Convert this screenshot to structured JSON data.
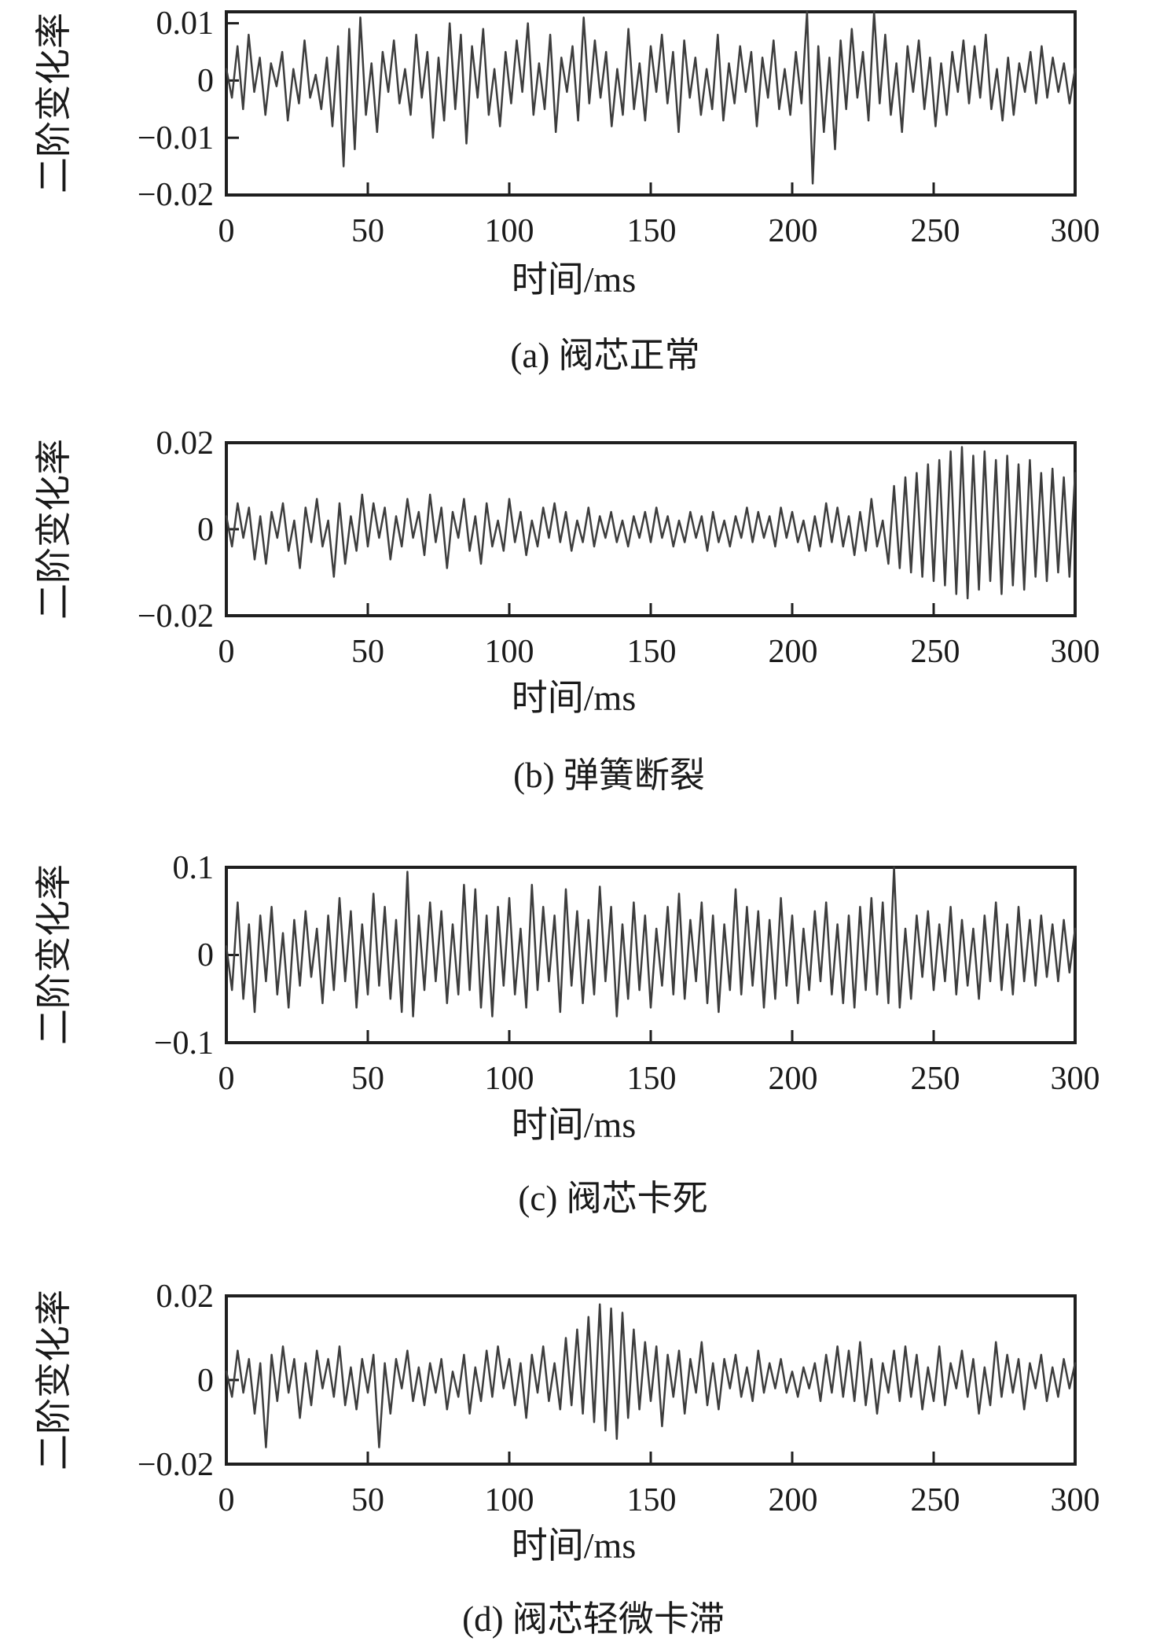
{
  "colors": {
    "axis": "#1f1f1f",
    "line": "#3d3d3d",
    "text": "#1a1a1a",
    "background": "#ffffff"
  },
  "chart_data": [
    {
      "id": "a",
      "type": "line",
      "caption": "(a) 阀芯正常",
      "xlabel": "时间/ms",
      "ylabel": "二阶变化率",
      "xlim": [
        0,
        300
      ],
      "ylim": [
        -0.02,
        0.012
      ],
      "xticks": [
        0,
        50,
        100,
        150,
        200,
        250,
        300
      ],
      "yticks": [
        0.01,
        0,
        -0.01,
        -0.02
      ],
      "ytick_labels": [
        "0.01",
        "0",
        "−0.01",
        "−0.02"
      ],
      "grid": false,
      "legend": null,
      "unit": 0.001,
      "values": [
        2,
        -3,
        6,
        -5,
        8,
        -2,
        4,
        -6,
        3,
        -1,
        5,
        -7,
        2,
        -4,
        7,
        -3,
        1,
        -5,
        4,
        -8,
        6,
        -15,
        9,
        -12,
        11,
        -6,
        3,
        -9,
        5,
        -2,
        7,
        -4,
        2,
        -6,
        8,
        -3,
        5,
        -10,
        4,
        -7,
        10,
        -5,
        8,
        -11,
        6,
        -3,
        9,
        -6,
        2,
        -8,
        5,
        -4,
        7,
        -2,
        10,
        -6,
        3,
        -5,
        8,
        -9,
        4,
        -2,
        6,
        -7,
        11,
        -4,
        7,
        -3,
        5,
        -8,
        2,
        -6,
        9,
        -5,
        3,
        -7,
        6,
        -2,
        8,
        -4,
        5,
        -9,
        7,
        -3,
        4,
        -6,
        2,
        -5,
        8,
        -7,
        3,
        -4,
        6,
        -2,
        5,
        -8,
        4,
        -3,
        7,
        -5,
        2,
        -6,
        5,
        -4,
        12,
        -18,
        6,
        -9,
        4,
        -12,
        7,
        -5,
        9,
        -3,
        5,
        -7,
        12,
        -4,
        8,
        -6,
        3,
        -9,
        6,
        -2,
        7,
        -5,
        4,
        -8,
        3,
        -6,
        5,
        -2,
        7,
        -4,
        6,
        -3,
        8,
        -5,
        2,
        -7,
        4,
        -6,
        3,
        -2,
        5,
        -4,
        6,
        -3,
        4,
        -2,
        3,
        -4,
        2
      ]
    },
    {
      "id": "b",
      "type": "line",
      "caption": "(b) 弹簧断裂",
      "xlabel": "时间/ms",
      "ylabel": "二阶变化率",
      "xlim": [
        0,
        300
      ],
      "ylim": [
        -0.02,
        0.02
      ],
      "xticks": [
        0,
        50,
        100,
        150,
        200,
        250,
        300
      ],
      "yticks": [
        0.02,
        0,
        -0.02
      ],
      "ytick_labels": [
        "0.02",
        "0",
        "−0.02"
      ],
      "grid": false,
      "legend": null,
      "unit": 0.001,
      "values": [
        3,
        -4,
        6,
        -2,
        5,
        -7,
        3,
        -8,
        4,
        -2,
        6,
        -5,
        2,
        -9,
        5,
        -3,
        7,
        -4,
        2,
        -11,
        6,
        -8,
        3,
        -5,
        8,
        -4,
        6,
        -2,
        5,
        -7,
        3,
        -4,
        7,
        -2,
        4,
        -6,
        8,
        -3,
        5,
        -9,
        4,
        -2,
        7,
        -5,
        3,
        -8,
        6,
        -4,
        2,
        -5,
        7,
        -3,
        4,
        -6,
        2,
        -4,
        5,
        -2,
        6,
        -3,
        4,
        -5,
        2,
        -3,
        5,
        -4,
        3,
        -2,
        4,
        -3,
        2,
        -4,
        3,
        -2,
        4,
        -3,
        5,
        -2,
        3,
        -4,
        2,
        -3,
        4,
        -2,
        3,
        -5,
        4,
        -3,
        2,
        -4,
        3,
        -2,
        5,
        -3,
        4,
        -2,
        3,
        -4,
        5,
        -2,
        4,
        -3,
        2,
        -5,
        3,
        -4,
        6,
        -3,
        5,
        -4,
        3,
        -6,
        4,
        -5,
        7,
        -4,
        2,
        -8,
        10,
        -9,
        12,
        -10,
        13,
        -11,
        15,
        -12,
        16,
        -13,
        18,
        -15,
        19,
        -16,
        17,
        -14,
        18,
        -12,
        16,
        -15,
        17,
        -13,
        15,
        -14,
        16,
        -11,
        13,
        -12,
        14,
        -10,
        12,
        -11,
        13
      ]
    },
    {
      "id": "c",
      "type": "line",
      "caption": "(c) 阀芯卡死",
      "xlabel": "时间/ms",
      "ylabel": "二阶变化率",
      "xlim": [
        0,
        300
      ],
      "ylim": [
        -0.1,
        0.1
      ],
      "xticks": [
        0,
        50,
        100,
        150,
        200,
        250,
        300
      ],
      "yticks": [
        0.1,
        0,
        -0.1
      ],
      "ytick_labels": [
        "0.1",
        "0",
        "−0.1"
      ],
      "grid": false,
      "legend": null,
      "unit": 0.001,
      "values": [
        10,
        -40,
        60,
        -50,
        35,
        -65,
        45,
        -30,
        55,
        -45,
        25,
        -60,
        40,
        -35,
        50,
        -25,
        30,
        -55,
        45,
        -40,
        65,
        -30,
        50,
        -60,
        35,
        -45,
        70,
        -35,
        55,
        -50,
        40,
        -65,
        95,
        -70,
        45,
        -40,
        60,
        -30,
        50,
        -55,
        35,
        -45,
        80,
        -40,
        75,
        -60,
        45,
        -70,
        55,
        -35,
        65,
        -45,
        30,
        -60,
        80,
        -40,
        55,
        -30,
        45,
        -65,
        75,
        -35,
        50,
        -55,
        40,
        -45,
        78,
        -30,
        55,
        -70,
        35,
        -50,
        60,
        -40,
        45,
        -60,
        30,
        -35,
        55,
        -45,
        70,
        -50,
        40,
        -30,
        60,
        -55,
        45,
        -65,
        35,
        -40,
        75,
        -45,
        55,
        -35,
        50,
        -60,
        40,
        -50,
        65,
        -35,
        45,
        -55,
        30,
        -40,
        50,
        -30,
        60,
        -45,
        35,
        -55,
        45,
        -60,
        55,
        -40,
        65,
        -45,
        60,
        -55,
        100,
        -60,
        30,
        -50,
        45,
        -25,
        50,
        -40,
        35,
        -30,
        55,
        -45,
        40,
        -35,
        30,
        -50,
        45,
        -30,
        60,
        -40,
        35,
        -45,
        55,
        -30,
        40,
        -35,
        45,
        -25,
        35,
        -30,
        40,
        -20,
        30
      ]
    },
    {
      "id": "d",
      "type": "line",
      "caption": "(d) 阀芯轻微卡滞",
      "xlabel": "时间/ms",
      "ylabel": "二阶变化率",
      "xlim": [
        0,
        300
      ],
      "ylim": [
        -0.02,
        0.02
      ],
      "xticks": [
        0,
        50,
        100,
        150,
        200,
        250,
        300
      ],
      "yticks": [
        0.02,
        0,
        -0.02
      ],
      "ytick_labels": [
        "0.02",
        "0",
        "−0.02"
      ],
      "grid": false,
      "legend": null,
      "unit": 0.001,
      "values": [
        2,
        -4,
        7,
        -3,
        5,
        -8,
        4,
        -16,
        6,
        -5,
        8,
        -3,
        5,
        -9,
        4,
        -6,
        7,
        -2,
        5,
        -4,
        8,
        -6,
        3,
        -7,
        5,
        -3,
        6,
        -16,
        4,
        -8,
        5,
        -2,
        7,
        -5,
        3,
        -6,
        4,
        -3,
        5,
        -7,
        2,
        -4,
        6,
        -8,
        3,
        -5,
        7,
        -4,
        8,
        -2,
        5,
        -6,
        4,
        -9,
        6,
        -3,
        8,
        -5,
        4,
        -7,
        10,
        -6,
        12,
        -8,
        15,
        -10,
        18,
        -12,
        17,
        -14,
        16,
        -9,
        12,
        -7,
        9,
        -5,
        8,
        -11,
        6,
        -4,
        7,
        -8,
        5,
        -3,
        9,
        -6,
        4,
        -7,
        5,
        -2,
        6,
        -4,
        3,
        -5,
        7,
        -3,
        4,
        -2,
        5,
        -3,
        2,
        -4,
        3,
        -2,
        4,
        -5,
        6,
        -3,
        8,
        -4,
        7,
        -5,
        9,
        -6,
        5,
        -8,
        4,
        -3,
        7,
        -5,
        8,
        -4,
        6,
        -7,
        3,
        -5,
        8,
        -6,
        4,
        -2,
        7,
        -4,
        5,
        -8,
        3,
        -6,
        9,
        -4,
        6,
        -3,
        5,
        -7,
        4,
        -2,
        6,
        -5,
        3,
        -4,
        5,
        -2,
        4
      ]
    }
  ]
}
